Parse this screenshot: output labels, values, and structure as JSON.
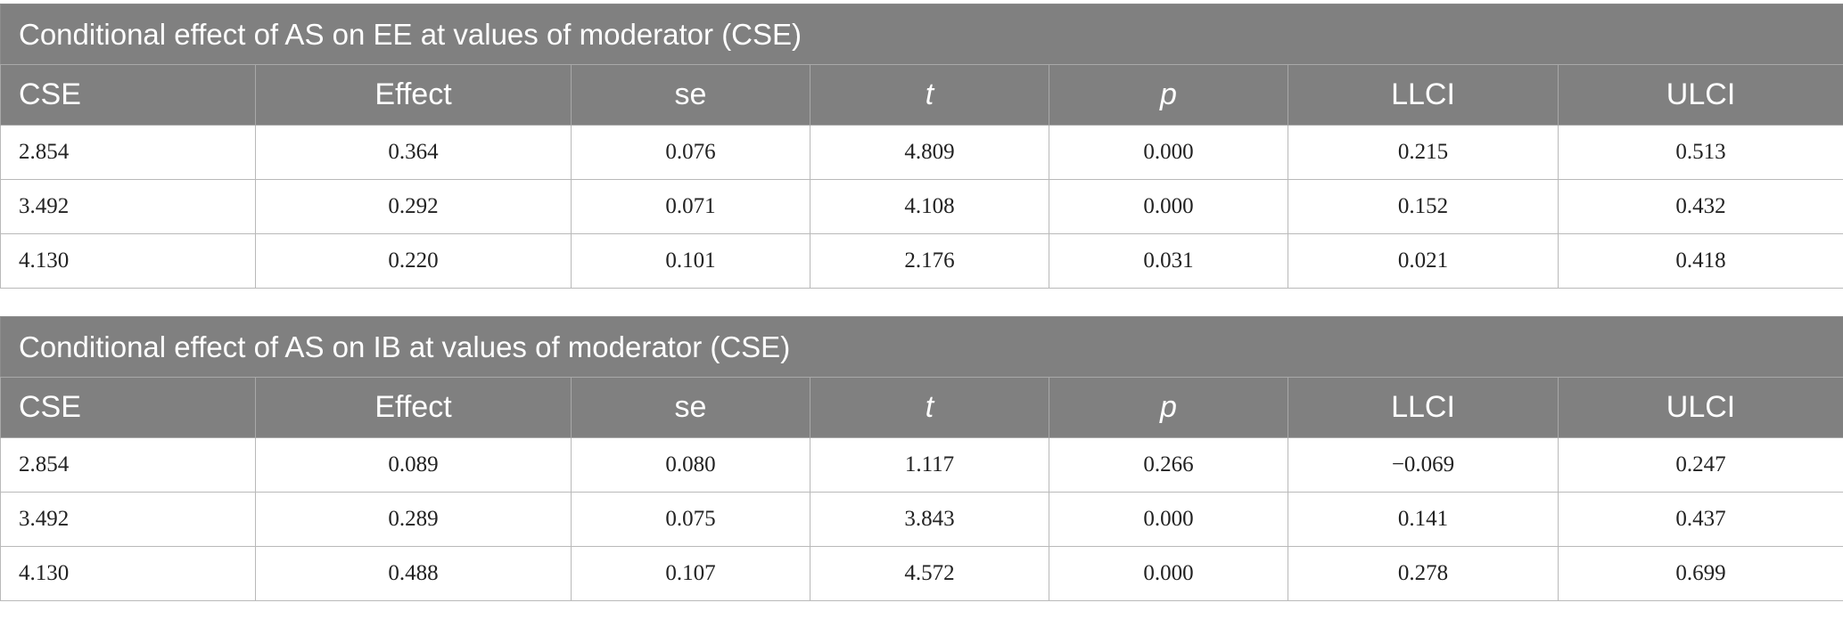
{
  "columns": [
    "CSE",
    "Effect",
    "se",
    "t",
    "p",
    "LLCI",
    "ULCI"
  ],
  "tables": [
    {
      "title": "Conditional effect of AS on EE at values of moderator (CSE)",
      "rows": [
        [
          "2.854",
          "0.364",
          "0.076",
          "4.809",
          "0.000",
          "0.215",
          "0.513"
        ],
        [
          "3.492",
          "0.292",
          "0.071",
          "4.108",
          "0.000",
          "0.152",
          "0.432"
        ],
        [
          "4.130",
          "0.220",
          "0.101",
          "2.176",
          "0.031",
          "0.021",
          "0.418"
        ]
      ]
    },
    {
      "title": "Conditional effect of AS on IB at values of moderator (CSE)",
      "rows": [
        [
          "2.854",
          "0.089",
          "0.080",
          "1.117",
          "0.266",
          "−0.069",
          "0.247"
        ],
        [
          "3.492",
          "0.289",
          "0.075",
          "3.843",
          "0.000",
          "0.141",
          "0.437"
        ],
        [
          "4.130",
          "0.488",
          "0.107",
          "4.572",
          "0.000",
          "0.278",
          "0.699"
        ]
      ]
    }
  ],
  "colors": {
    "header_background": "#808080",
    "header_text": "#ffffff",
    "border": "#b9b9b9"
  }
}
